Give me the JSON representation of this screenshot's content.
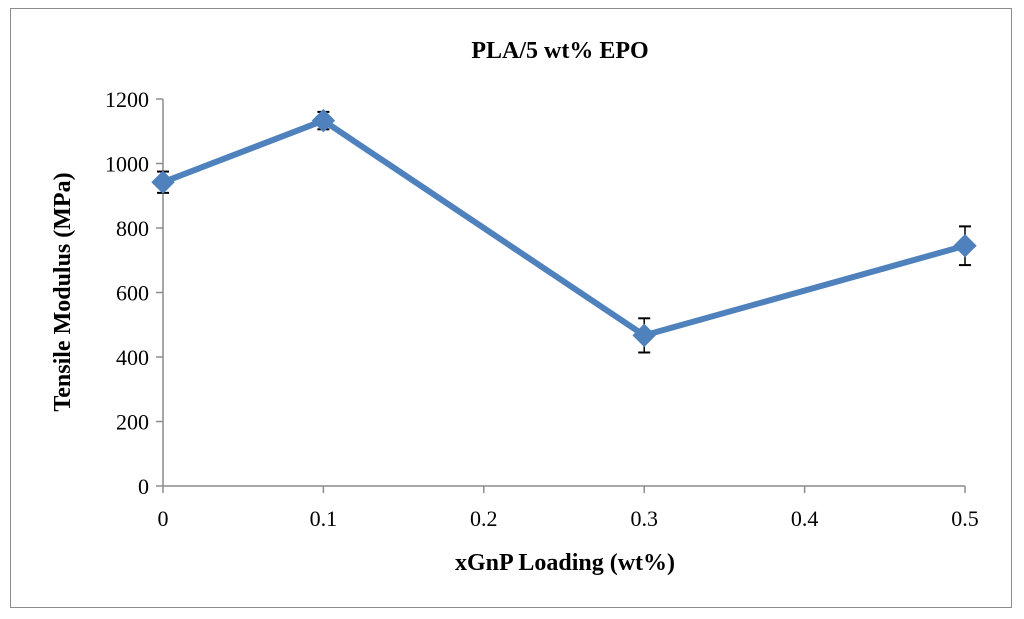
{
  "chart_data": {
    "type": "line",
    "title": "PLA/5 wt% EPO",
    "xlabel": "xGnP Loading (wt%)",
    "ylabel": "Tensile Modulus (MPa)",
    "xlim": [
      0,
      0.5
    ],
    "ylim": [
      0,
      1200
    ],
    "x_ticks": [
      0,
      0.1,
      0.2,
      0.3,
      0.4,
      0.5
    ],
    "x_tick_labels": [
      "0",
      "0.1",
      "0.2",
      "0.3",
      "0.4",
      "0.5"
    ],
    "y_ticks": [
      0,
      200,
      400,
      600,
      800,
      1000,
      1200
    ],
    "y_tick_labels": [
      "0",
      "200",
      "400",
      "600",
      "800",
      "1000",
      "1200"
    ],
    "grid": false,
    "legend": "none",
    "series": [
      {
        "name": "PLA/5 wt% EPO",
        "color": "#4f81bd",
        "marker": "diamond",
        "x": [
          0,
          0.1,
          0.3,
          0.5
        ],
        "values": [
          942,
          1133,
          467,
          745
        ],
        "error": [
          33,
          27,
          53,
          60
        ]
      }
    ]
  }
}
